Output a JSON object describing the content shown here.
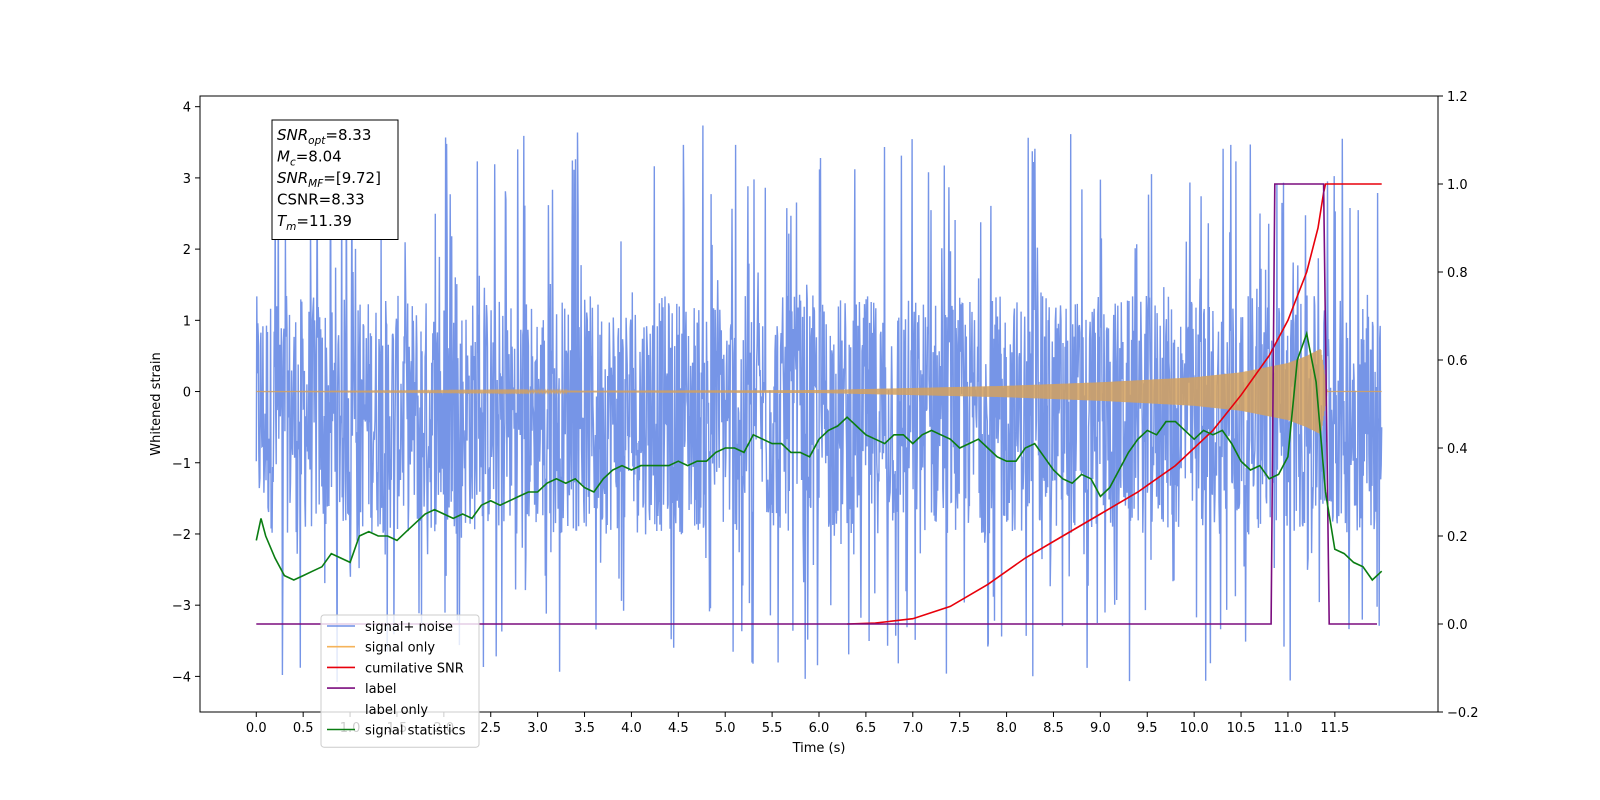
{
  "chart_data": {
    "type": "line",
    "xlabel": "Time (s)",
    "ylabel_left": "Whitened strain",
    "ylabel_right": "",
    "xlim": [
      -0.6,
      12.6
    ],
    "ylim_left": [
      -4.5,
      4.15
    ],
    "ylim_right": [
      -0.2,
      1.2
    ],
    "x_ticks": [
      "0.0",
      "0.5",
      "1.0",
      "1.5",
      "2.0",
      "2.5",
      "3.0",
      "3.5",
      "4.0",
      "4.5",
      "5.0",
      "5.5",
      "6.0",
      "6.5",
      "7.0",
      "7.5",
      "8.0",
      "8.5",
      "9.0",
      "9.5",
      "10.0",
      "10.5",
      "11.0",
      "11.5"
    ],
    "y_ticks_left": [
      "−4",
      "−3",
      "−2",
      "−1",
      "0",
      "1",
      "2",
      "3",
      "4"
    ],
    "y_ticks_right": [
      "−0.2",
      "0.0",
      "0.2",
      "0.4",
      "0.6",
      "0.8",
      "1.0",
      "1.2"
    ],
    "grid": false,
    "legend_position": "lower-left",
    "legend": [
      {
        "label": "signal+ noise",
        "color": "#6f8fe6"
      },
      {
        "label": "signal only",
        "color": "#f5b35a"
      },
      {
        "label": "cumilative SNR",
        "color": "#e8000b"
      },
      {
        "label": "label",
        "color": "#7b0d7f"
      },
      {
        "label": "label only",
        "color": "#b0b0b0"
      },
      {
        "label": "signal statistics",
        "color": "#0a7d12"
      }
    ],
    "annotation_box": {
      "lines": [
        {
          "main": "SNR",
          "sub": "opt",
          "value": "=8.33"
        },
        {
          "main": "M",
          "sub": "c",
          "value": "=8.04"
        },
        {
          "main": "SNR",
          "sub": "MF",
          "value": "=[9.72]"
        },
        {
          "main": "CSNR",
          "sub": "",
          "value": "=8.33"
        },
        {
          "main": "T",
          "sub": "m",
          "value": "=11.39"
        }
      ]
    },
    "series": [
      {
        "name": "signal+ noise",
        "axis": "left",
        "style": "noise",
        "x_range": [
          0.0,
          12.0
        ],
        "band_low": -2.0,
        "band_high": 1.35,
        "peak_max": 3.77,
        "peak_min": -4.12
      },
      {
        "name": "signal only",
        "axis": "left",
        "style": "chirp",
        "x_range": [
          0.0,
          12.0
        ],
        "envelope": {
          "x": [
            0.0,
            6.0,
            7.0,
            8.0,
            9.0,
            10.0,
            10.5,
            11.0,
            11.2,
            11.35,
            11.42,
            12.0
          ],
          "y": [
            0.0,
            0.02,
            0.05,
            0.08,
            0.13,
            0.2,
            0.27,
            0.4,
            0.5,
            0.6,
            0.0,
            0.0
          ]
        }
      },
      {
        "name": "cumilative SNR",
        "axis": "right",
        "x": [
          6.3,
          6.6,
          7.0,
          7.4,
          7.8,
          8.2,
          8.6,
          9.0,
          9.4,
          9.8,
          10.2,
          10.5,
          10.8,
          11.0,
          11.2,
          11.32,
          11.38,
          11.4,
          12.0
        ],
        "y": [
          0.0,
          0.002,
          0.012,
          0.04,
          0.09,
          0.15,
          0.2,
          0.25,
          0.3,
          0.36,
          0.44,
          0.52,
          0.61,
          0.69,
          0.8,
          0.9,
          0.98,
          1.0,
          1.0
        ]
      },
      {
        "name": "label",
        "axis": "right",
        "x": [
          0.0,
          10.82,
          10.86,
          11.38,
          11.44,
          11.95
        ],
        "y": [
          0.0,
          0.0,
          1.0,
          1.0,
          0.0,
          0.0
        ]
      },
      {
        "name": "signal statistics",
        "axis": "right",
        "x": [
          0.0,
          0.05,
          0.1,
          0.2,
          0.3,
          0.4,
          0.5,
          0.6,
          0.7,
          0.8,
          0.9,
          1.0,
          1.1,
          1.2,
          1.3,
          1.4,
          1.5,
          1.6,
          1.7,
          1.8,
          1.9,
          2.0,
          2.1,
          2.2,
          2.3,
          2.4,
          2.5,
          2.6,
          2.7,
          2.8,
          2.9,
          3.0,
          3.1,
          3.2,
          3.3,
          3.4,
          3.5,
          3.6,
          3.7,
          3.8,
          3.9,
          4.0,
          4.1,
          4.2,
          4.3,
          4.4,
          4.5,
          4.6,
          4.7,
          4.8,
          4.9,
          5.0,
          5.1,
          5.2,
          5.3,
          5.4,
          5.5,
          5.6,
          5.7,
          5.8,
          5.9,
          6.0,
          6.1,
          6.2,
          6.3,
          6.4,
          6.5,
          6.6,
          6.7,
          6.8,
          6.9,
          7.0,
          7.1,
          7.2,
          7.3,
          7.4,
          7.5,
          7.6,
          7.7,
          7.8,
          7.9,
          8.0,
          8.1,
          8.2,
          8.3,
          8.4,
          8.5,
          8.6,
          8.7,
          8.8,
          8.9,
          9.0,
          9.1,
          9.2,
          9.3,
          9.4,
          9.5,
          9.6,
          9.7,
          9.8,
          9.9,
          10.0,
          10.1,
          10.2,
          10.3,
          10.4,
          10.5,
          10.6,
          10.7,
          10.8,
          10.9,
          11.0,
          11.1,
          11.2,
          11.3,
          11.4,
          11.5,
          11.6,
          11.7,
          11.8,
          11.9,
          12.0
        ],
        "y": [
          0.19,
          0.24,
          0.2,
          0.15,
          0.11,
          0.1,
          0.11,
          0.12,
          0.13,
          0.16,
          0.15,
          0.14,
          0.2,
          0.21,
          0.2,
          0.2,
          0.19,
          0.21,
          0.23,
          0.25,
          0.26,
          0.25,
          0.24,
          0.25,
          0.24,
          0.27,
          0.28,
          0.27,
          0.28,
          0.29,
          0.3,
          0.3,
          0.32,
          0.33,
          0.32,
          0.33,
          0.31,
          0.3,
          0.33,
          0.35,
          0.36,
          0.35,
          0.36,
          0.36,
          0.36,
          0.36,
          0.37,
          0.36,
          0.37,
          0.37,
          0.39,
          0.4,
          0.4,
          0.39,
          0.43,
          0.42,
          0.41,
          0.41,
          0.39,
          0.39,
          0.38,
          0.42,
          0.44,
          0.45,
          0.47,
          0.45,
          0.43,
          0.42,
          0.41,
          0.43,
          0.43,
          0.41,
          0.43,
          0.44,
          0.43,
          0.42,
          0.4,
          0.41,
          0.42,
          0.4,
          0.38,
          0.37,
          0.37,
          0.4,
          0.41,
          0.38,
          0.35,
          0.33,
          0.32,
          0.34,
          0.33,
          0.29,
          0.31,
          0.35,
          0.39,
          0.42,
          0.44,
          0.43,
          0.46,
          0.46,
          0.44,
          0.42,
          0.44,
          0.43,
          0.44,
          0.41,
          0.37,
          0.35,
          0.36,
          0.33,
          0.34,
          0.38,
          0.6,
          0.66,
          0.55,
          0.3,
          0.17,
          0.16,
          0.14,
          0.13,
          0.1,
          0.12
        ]
      }
    ]
  }
}
